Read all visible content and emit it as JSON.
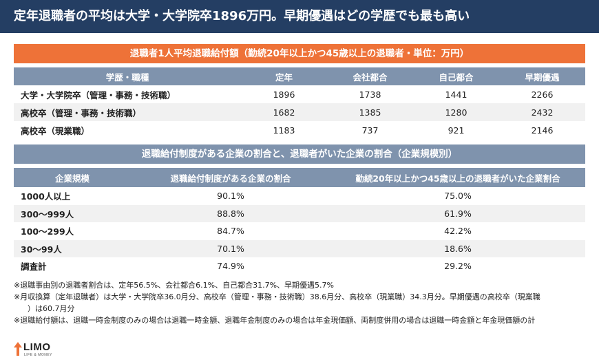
{
  "header": {
    "title": "定年退職者の平均は大学・大学院卒1896万円。早期優遇はどの学歴でも最も高い"
  },
  "table1": {
    "title": "退職者1人平均退職給付額（勤続20年以上かつ45歳以上の退職者・単位：万円）",
    "columns": [
      "学歴・職種",
      "定年",
      "会社都合",
      "自己都合",
      "早期優遇"
    ],
    "rows": [
      {
        "label": "大学・大学院卒（管理・事務・技術職）",
        "values": [
          "1896",
          "1738",
          "1441",
          "2266"
        ]
      },
      {
        "label": "高校卒（管理・事務・技術職）",
        "values": [
          "1682",
          "1385",
          "1280",
          "2432"
        ]
      },
      {
        "label": "高校卒（現業職）",
        "values": [
          "1183",
          "737",
          "921",
          "2146"
        ]
      }
    ]
  },
  "table2": {
    "title": "退職給付制度がある企業の割合と、退職者がいた企業の割合（企業規模別）",
    "columns": [
      "企業規模",
      "退職給付制度がある企業の割合",
      "勤続20年以上かつ45歳以上の退職者がいた企業割合"
    ],
    "rows": [
      {
        "label": "1000人以上",
        "values": [
          "90.1%",
          "75.0%"
        ]
      },
      {
        "label": "300～999人",
        "values": [
          "88.8%",
          "61.9%"
        ]
      },
      {
        "label": "100～299人",
        "values": [
          "84.7%",
          "42.2%"
        ]
      },
      {
        "label": "30～99人",
        "values": [
          "70.1%",
          "18.6%"
        ]
      },
      {
        "label": "調査計",
        "values": [
          "74.9%",
          "29.2%"
        ]
      }
    ]
  },
  "notes": {
    "n1": "※退職事由別の退職者割合は、定年56.5%、会社都合6.1%、自己都合31.7%、早期優遇5.7%",
    "n2a": "※月収換算（定年退職者）は大学・大学院卒36.0月分、高校卒（管理・事務・技術職）38.6月分、高校卒（現業職）34.3月分。早期優遇の高校卒（現業職",
    "n2b": "）は60.7月分",
    "n3": "※退職給付額は、退職一時金制度のみの場合は退職一時金額、退職年金制度のみの場合は年金現価額、両制度併用の場合は退職一時金額と年金現価額の計"
  },
  "logo": {
    "name": "LIMO",
    "tagline": "LIFE & MONEY"
  },
  "colors": {
    "header_bg": "#243e63",
    "orange": "#ee7238",
    "table_header": "#7f93ad",
    "row_alt": "#f1f1f1"
  }
}
